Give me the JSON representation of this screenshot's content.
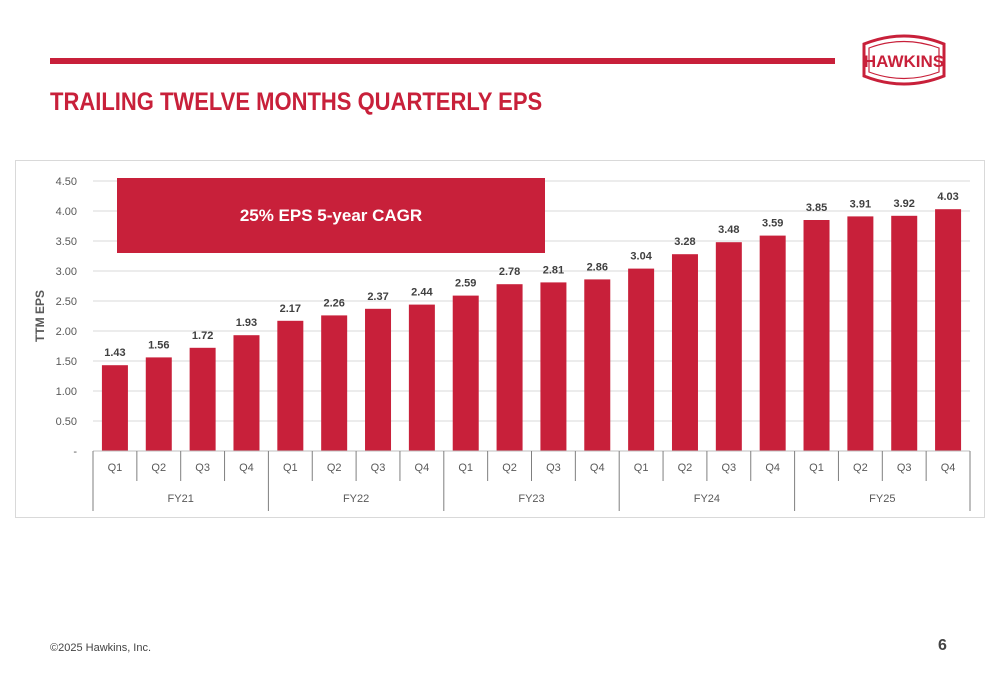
{
  "header": {
    "title": "TRAILING TWELVE MONTHS QUARTERLY EPS",
    "logo_text": "HAWKINS",
    "accent_color": "#c8203a"
  },
  "callout": {
    "text": "25% EPS 5-year CAGR"
  },
  "footer": {
    "copyright": "©2025 Hawkins, Inc.",
    "page_number": "6"
  },
  "chart_data": {
    "type": "bar",
    "ylabel": "TTM EPS",
    "xlabel": "",
    "ylim": [
      0,
      4.5
    ],
    "yticks": [
      "-",
      "0.50",
      "1.00",
      "1.50",
      "2.00",
      "2.50",
      "3.00",
      "3.50",
      "4.00",
      "4.50"
    ],
    "grid": true,
    "bar_color": "#c8203a",
    "groups": [
      "FY21",
      "FY22",
      "FY23",
      "FY24",
      "FY25"
    ],
    "quarters": [
      "Q1",
      "Q2",
      "Q3",
      "Q4"
    ],
    "categories": [
      "FY21 Q1",
      "FY21 Q2",
      "FY21 Q3",
      "FY21 Q4",
      "FY22 Q1",
      "FY22 Q2",
      "FY22 Q3",
      "FY22 Q4",
      "FY23 Q1",
      "FY23 Q2",
      "FY23 Q3",
      "FY23 Q4",
      "FY24 Q1",
      "FY24 Q2",
      "FY24 Q3",
      "FY24 Q4",
      "FY25 Q1",
      "FY25 Q2",
      "FY25 Q3",
      "FY25 Q4"
    ],
    "values": [
      1.43,
      1.56,
      1.72,
      1.93,
      2.17,
      2.26,
      2.37,
      2.44,
      2.59,
      2.78,
      2.81,
      2.86,
      3.04,
      3.28,
      3.48,
      3.59,
      3.85,
      3.91,
      3.92,
      4.03
    ],
    "data_labels": [
      "1.43",
      "1.56",
      "1.72",
      "1.93",
      "2.17",
      "2.26",
      "2.37",
      "2.44",
      "2.59",
      "2.78",
      "2.81",
      "2.86",
      "3.04",
      "3.28",
      "3.48",
      "3.59",
      "3.85",
      "3.91",
      "3.92",
      "4.03"
    ]
  }
}
